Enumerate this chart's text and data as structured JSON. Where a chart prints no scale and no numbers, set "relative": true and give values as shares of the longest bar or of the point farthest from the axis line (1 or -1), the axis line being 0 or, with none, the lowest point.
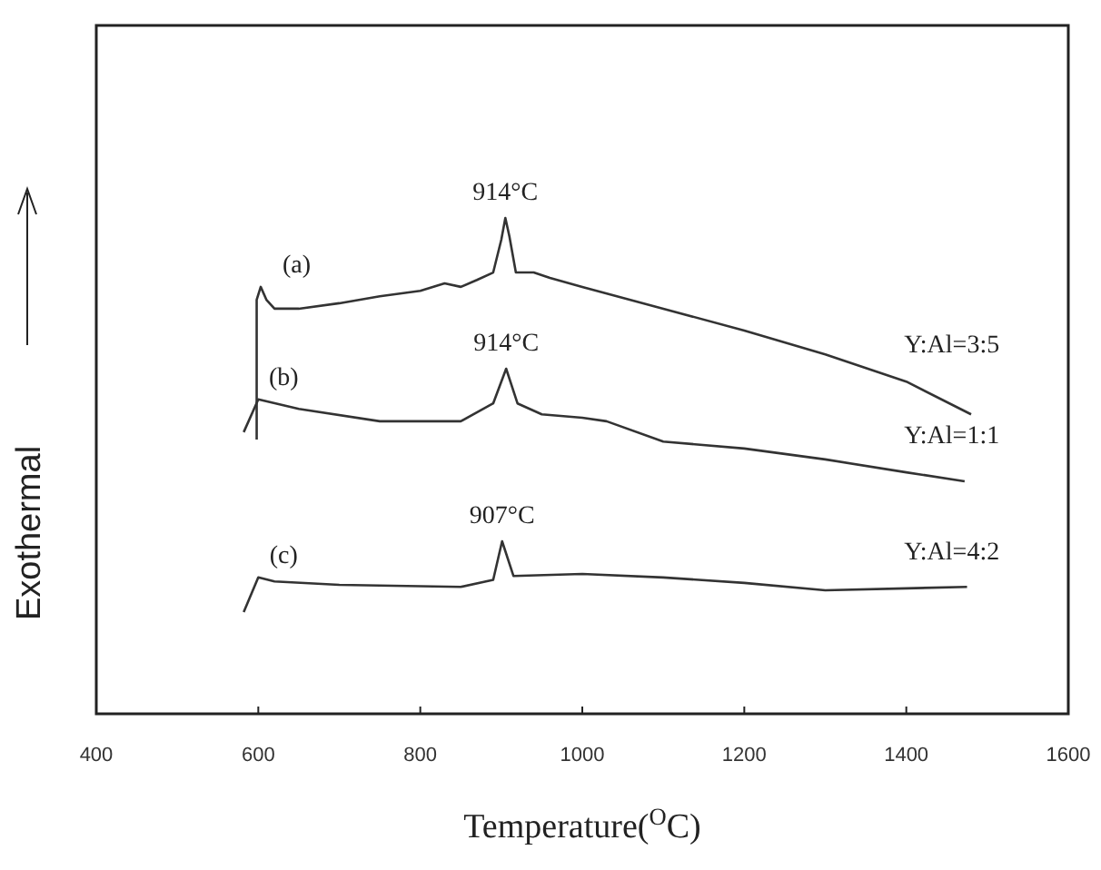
{
  "chart_data": {
    "type": "line",
    "relative": true,
    "xlabel": "Temperature($^{O}$C)",
    "ylabel": "Exothermal",
    "xlim": [
      400,
      1600
    ],
    "xticks": [
      400,
      600,
      800,
      1000,
      1200,
      1400,
      1600
    ],
    "marker": "none",
    "line_style": "solid",
    "series": [
      {
        "name": "Y:Al=3:5",
        "color": "#333333",
        "x": [
          598,
          598,
          603,
          610,
          620,
          650,
          700,
          750,
          800,
          830,
          850,
          870,
          890,
          900,
          905,
          910,
          918,
          940,
          960,
          1000,
          1100,
          1200,
          1300,
          1400,
          1480
        ],
        "values": [
          0.553,
          0.835,
          0.861,
          0.835,
          0.817,
          0.817,
          0.828,
          0.842,
          0.853,
          0.868,
          0.861,
          0.875,
          0.89,
          0.956,
          1.0,
          0.963,
          0.89,
          0.89,
          0.879,
          0.861,
          0.817,
          0.773,
          0.725,
          0.67,
          0.604
        ]
      },
      {
        "name": "Y:Al=1:1",
        "color": "#333333",
        "x": [
          582,
          600,
          650,
          750,
          850,
          890,
          906,
          920,
          950,
          1000,
          1030,
          1100,
          1200,
          1300,
          1400,
          1472
        ],
        "values": [
          0.568,
          0.634,
          0.615,
          0.59,
          0.59,
          0.626,
          0.696,
          0.626,
          0.604,
          0.597,
          0.59,
          0.549,
          0.535,
          0.513,
          0.487,
          0.469
        ]
      },
      {
        "name": "Y:Al=4:2",
        "color": "#333333",
        "x": [
          582,
          600,
          620,
          700,
          850,
          890,
          901,
          915,
          1000,
          1100,
          1200,
          1300,
          1400,
          1475
        ],
        "values": [
          0.205,
          0.275,
          0.267,
          0.26,
          0.256,
          0.27,
          0.348,
          0.278,
          0.282,
          0.275,
          0.264,
          0.249,
          0.253,
          0.256
        ]
      }
    ],
    "annotations": [
      {
        "text": "914°C",
        "x": 905,
        "y": 1.0
      },
      {
        "text": "914°C",
        "x": 906,
        "y": 0.696
      },
      {
        "text": "907°C",
        "x": 901,
        "y": 0.348
      },
      "(a)",
      "(b)",
      "(c)"
    ]
  }
}
